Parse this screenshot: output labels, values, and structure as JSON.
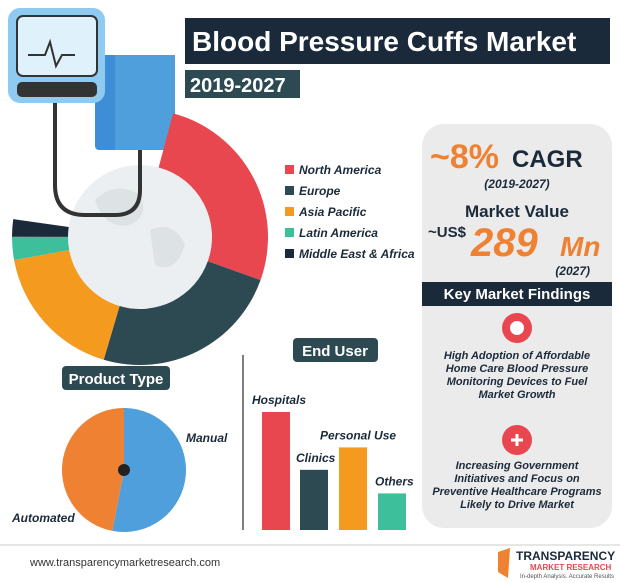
{
  "header": {
    "title": "Blood Pressure Cuffs Market",
    "subtitle": "2019-2027"
  },
  "chart_data": [
    {
      "type": "donut",
      "categories": [
        "North America",
        "Europe",
        "Asia Pacific",
        "Latin America",
        "Middle East & Africa"
      ],
      "values": [
        36,
        33,
        24,
        4,
        3
      ],
      "colors": [
        "#e8474f",
        "#2d4a53",
        "#f39a1f",
        "#3dbf9b",
        "#1b2a3a"
      ]
    },
    {
      "type": "pie",
      "title": "Product Type",
      "categories": [
        "Manual",
        "Automated"
      ],
      "values": [
        53,
        47
      ],
      "colors": [
        "#4f9fdc",
        "#ef8133"
      ]
    },
    {
      "type": "bar",
      "title": "End User",
      "categories": [
        "Hospitals",
        "Clinics",
        "Personal Use",
        "Others"
      ],
      "values": [
        100,
        51,
        70,
        31
      ],
      "colors": [
        "#e8474f",
        "#2d4a53",
        "#f39a1f",
        "#3dbf9b"
      ]
    }
  ],
  "summary": {
    "cagr_value": "~8%",
    "cagr_label": "CAGR",
    "cagr_period": "(2019-2027)",
    "market_label": "Market Value",
    "currency": "~US$",
    "amount": "289",
    "unit": "Mn",
    "year": "(2027)"
  },
  "findings": {
    "title": "Key Market Findings",
    "items": [
      "High Adoption of Affordable Home Care Blood Pressure Monitoring Devices to Fuel Market Growth",
      "Increasing Government Initiatives and Focus on Preventive Healthcare Programs Likely to Drive Market"
    ]
  },
  "footer": {
    "url": "www.transparencymarketresearch.com",
    "brand": "TRANSPARENCY",
    "brand_sub": "MARKET RESEARCH",
    "tagline": "In-depth Analysis. Accurate Results"
  }
}
